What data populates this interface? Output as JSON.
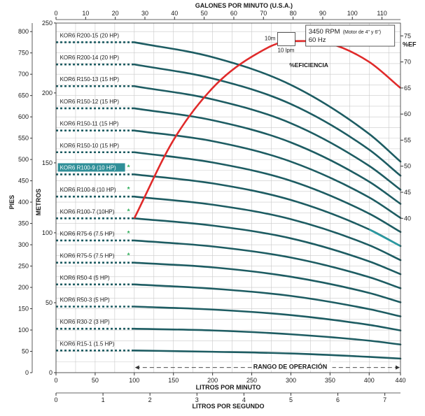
{
  "chart_data": {
    "type": "line",
    "axes": {
      "top": {
        "label": "GALONES POR MINUTO (U.S.A.)",
        "ticks": [
          0,
          10,
          20,
          30,
          40,
          50,
          60,
          70,
          80,
          90,
          100,
          110
        ]
      },
      "bottom": {
        "label": "LITROS POR MINUTO",
        "ticks": [
          0,
          50,
          100,
          150,
          200,
          250,
          300,
          350,
          400,
          440
        ],
        "range": [
          0,
          440
        ]
      },
      "bottom2": {
        "label": "LITROS POR SEGUNDO",
        "ticks": [
          0,
          1,
          2,
          3,
          4,
          5,
          6,
          7
        ]
      },
      "left_feet": {
        "label": "PIES",
        "ticks": [
          0,
          50,
          100,
          150,
          200,
          250,
          300,
          350,
          400,
          450,
          500,
          550,
          600,
          650,
          700,
          750,
          800
        ],
        "range": [
          0,
          820
        ]
      },
      "left_meters": {
        "label": "METROS",
        "ticks": [
          0,
          50,
          100,
          150,
          200,
          250
        ]
      },
      "right_eff": {
        "label": "%EF",
        "ticks": [
          40,
          45,
          50,
          55,
          60,
          65,
          70,
          75
        ],
        "range": [
          40,
          75
        ]
      }
    },
    "info_box": {
      "line1": "3450 RPM",
      "line1_small": "(Motor de 4\" y 6\")",
      "line2": "60 Hz"
    },
    "scale_box": {
      "vertical": "10m",
      "horizontal": "10 lpm"
    },
    "efficiency_label": "%EFICIENCIA",
    "range_label": "RANGO DE OPERACIÓN",
    "series": [
      {
        "name": "KOR6 R200-15 (20 HP)",
        "star": false,
        "highlight": false,
        "x": [
          100,
          200,
          300,
          400,
          440
        ],
        "y": [
          775,
          740,
          675,
          560,
          495
        ]
      },
      {
        "name": "KOR6 R200-14 (20 HP)",
        "star": false,
        "highlight": false,
        "x": [
          100,
          200,
          300,
          400,
          440
        ],
        "y": [
          723,
          690,
          630,
          523,
          462
        ]
      },
      {
        "name": "KOR6 R150-13 (15 HP)",
        "star": false,
        "highlight": false,
        "x": [
          100,
          200,
          300,
          400,
          440
        ],
        "y": [
          672,
          641,
          585,
          485,
          429
        ]
      },
      {
        "name": "KOR6 R150-12 (15 HP)",
        "star": false,
        "highlight": false,
        "x": [
          100,
          200,
          300,
          400,
          440
        ],
        "y": [
          620,
          592,
          540,
          448,
          396
        ]
      },
      {
        "name": "KOR6 R150-11 (15 HP)",
        "star": false,
        "highlight": false,
        "x": [
          100,
          200,
          300,
          400,
          440
        ],
        "y": [
          568,
          543,
          495,
          411,
          363
        ]
      },
      {
        "name": "KOR6 R150-10 (15 HP)",
        "star": false,
        "highlight": false,
        "x": [
          100,
          200,
          300,
          400,
          440
        ],
        "y": [
          517,
          493,
          450,
          373,
          330
        ]
      },
      {
        "name": "KOR6 R100-9 (10 HP)",
        "star": true,
        "highlight": true,
        "x": [
          100,
          200,
          300,
          400,
          440
        ],
        "y": [
          465,
          444,
          405,
          336,
          297
        ]
      },
      {
        "name": "KOR6 R100-8 (10 HP)",
        "star": true,
        "highlight": false,
        "x": [
          100,
          200,
          300,
          400,
          440
        ],
        "y": [
          413,
          394,
          360,
          299,
          264
        ]
      },
      {
        "name": "KOR6 R100-7 (10HP)",
        "star": true,
        "highlight": false,
        "x": [
          100,
          200,
          300,
          400,
          440
        ],
        "y": [
          362,
          345,
          315,
          261,
          231
        ]
      },
      {
        "name": "KOR6 R75-6 (7.5 HP)",
        "star": true,
        "highlight": false,
        "x": [
          100,
          200,
          300,
          400,
          440
        ],
        "y": [
          310,
          296,
          270,
          224,
          198
        ]
      },
      {
        "name": "KOR6 R75-5 (7.5 HP)",
        "star": true,
        "highlight": false,
        "x": [
          100,
          200,
          300,
          400,
          440
        ],
        "y": [
          258,
          247,
          225,
          187,
          165
        ]
      },
      {
        "name": "KOR6 R50-4 (5 HP)",
        "star": false,
        "highlight": false,
        "x": [
          100,
          200,
          300,
          400,
          440
        ],
        "y": [
          207,
          197,
          180,
          149,
          132
        ]
      },
      {
        "name": "KOR6 R50-3 (5 HP)",
        "star": false,
        "highlight": false,
        "x": [
          100,
          200,
          300,
          400,
          440
        ],
        "y": [
          155,
          148,
          135,
          112,
          99
        ]
      },
      {
        "name": "KOR6 R30-2 (3 HP)",
        "star": false,
        "highlight": false,
        "x": [
          100,
          200,
          300,
          400,
          440
        ],
        "y": [
          103,
          99,
          90,
          75,
          66
        ]
      },
      {
        "name": "KOR6 R15-1 (1.5 HP)",
        "star": false,
        "highlight": false,
        "x": [
          100,
          200,
          300,
          400,
          440
        ],
        "y": [
          52,
          49,
          45,
          37,
          33
        ]
      }
    ],
    "efficiency": {
      "x": [
        100,
        150,
        200,
        250,
        300,
        350,
        400,
        440
      ],
      "y": [
        40,
        55,
        65,
        71,
        74,
        73.5,
        70,
        65
      ]
    },
    "operation_range": [
      100,
      440
    ]
  },
  "colors": {
    "curve": "#1d5c62",
    "highlight": "#2a9aa2",
    "eff": "#e02a2a",
    "grid": "#c9c9c9",
    "star": "#2fae5a",
    "hl_box": "#2f8f98"
  }
}
